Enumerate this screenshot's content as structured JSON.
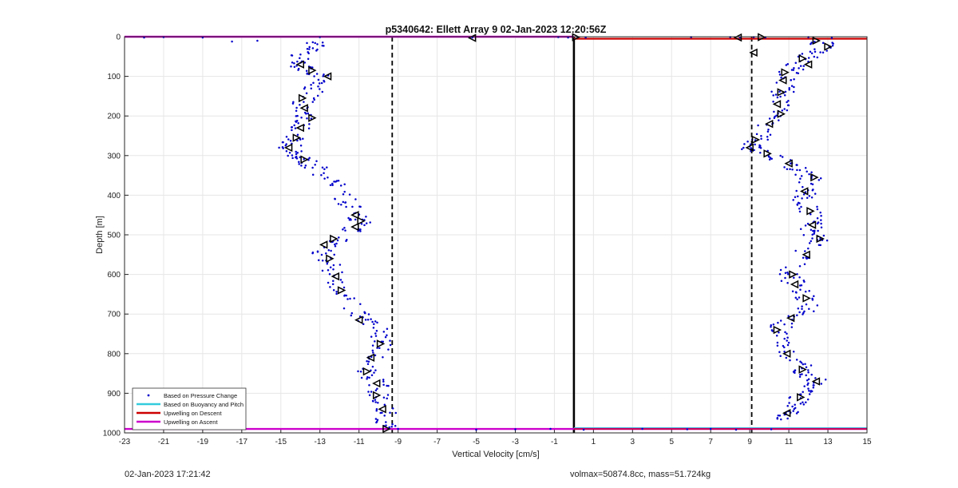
{
  "chart_data": {
    "type": "scatter",
    "title": "p5340642: Ellett Array 9 02-Jan-2023 12:20:56Z",
    "xlabel": "Vertical Velocity [cm/s]",
    "ylabel": "Depth [m]",
    "xlim": [
      -23,
      15
    ],
    "ylim": [
      0,
      1000
    ],
    "y_reversed": true,
    "grid": true,
    "xticks": [
      -23,
      -21,
      -19,
      -17,
      -15,
      -13,
      -11,
      -9,
      -7,
      -5,
      -3,
      -1,
      1,
      3,
      5,
      7,
      9,
      11,
      13,
      15
    ],
    "xtick_labels": [
      "-23",
      "-21",
      "-19",
      "-17",
      "-15",
      "-13",
      "-11",
      "-9",
      "-7",
      "-5",
      "-3",
      "-1",
      "1",
      "3",
      "5",
      "7",
      "9",
      "11",
      "13",
      "15"
    ],
    "yticks": [
      0,
      100,
      200,
      300,
      400,
      500,
      600,
      700,
      800,
      900,
      1000
    ],
    "ytick_labels": [
      "0",
      "100",
      "200",
      "300",
      "400",
      "500",
      "600",
      "700",
      "800",
      "900",
      "1000"
    ],
    "legend_position": "bottom-left",
    "legend": [
      {
        "label": "Based on Pressure Change",
        "color": "#0000cc",
        "style": "dot"
      },
      {
        "label": "Based on Buoyancy and Pitch",
        "color": "#33ccdd",
        "style": "line"
      },
      {
        "label": "Upwelling on Descent",
        "color": "#cc0000",
        "style": "line"
      },
      {
        "label": "Upwelling on Ascent",
        "color": "#cc00cc",
        "style": "line"
      }
    ],
    "ascent_profile": [
      {
        "depth": 10,
        "v": -13.1
      },
      {
        "depth": 30,
        "v": -13.4
      },
      {
        "depth": 50,
        "v": -14.0
      },
      {
        "depth": 70,
        "v": -14.2
      },
      {
        "depth": 85,
        "v": -13.5
      },
      {
        "depth": 100,
        "v": -12.8
      },
      {
        "depth": 130,
        "v": -13.3
      },
      {
        "depth": 160,
        "v": -13.8
      },
      {
        "depth": 190,
        "v": -14.1
      },
      {
        "depth": 210,
        "v": -13.6
      },
      {
        "depth": 230,
        "v": -14.1
      },
      {
        "depth": 260,
        "v": -14.3
      },
      {
        "depth": 280,
        "v": -14.6
      },
      {
        "depth": 300,
        "v": -14.3
      },
      {
        "depth": 310,
        "v": -13.9
      },
      {
        "depth": 330,
        "v": -13.2
      },
      {
        "depth": 360,
        "v": -12.5
      },
      {
        "depth": 390,
        "v": -11.9
      },
      {
        "depth": 420,
        "v": -11.5
      },
      {
        "depth": 450,
        "v": -11.1
      },
      {
        "depth": 470,
        "v": -10.9
      },
      {
        "depth": 490,
        "v": -11.4
      },
      {
        "depth": 520,
        "v": -12.4
      },
      {
        "depth": 545,
        "v": -12.8
      },
      {
        "depth": 570,
        "v": -12.6
      },
      {
        "depth": 600,
        "v": -12.3
      },
      {
        "depth": 640,
        "v": -11.8
      },
      {
        "depth": 680,
        "v": -11.4
      },
      {
        "depth": 710,
        "v": -10.9
      },
      {
        "depth": 730,
        "v": -10.1
      },
      {
        "depth": 760,
        "v": -9.8
      },
      {
        "depth": 790,
        "v": -9.9
      },
      {
        "depth": 820,
        "v": -10.4
      },
      {
        "depth": 850,
        "v": -10.6
      },
      {
        "depth": 880,
        "v": -10.0
      },
      {
        "depth": 910,
        "v": -9.9
      },
      {
        "depth": 940,
        "v": -9.6
      },
      {
        "depth": 970,
        "v": -9.8
      },
      {
        "depth": 990,
        "v": -9.7
      }
    ],
    "descent_profile": [
      {
        "depth": 10,
        "v": 12.8
      },
      {
        "depth": 30,
        "v": 12.6
      },
      {
        "depth": 50,
        "v": 12.0
      },
      {
        "depth": 70,
        "v": 11.5
      },
      {
        "depth": 90,
        "v": 11.0
      },
      {
        "depth": 110,
        "v": 10.8
      },
      {
        "depth": 140,
        "v": 10.7
      },
      {
        "depth": 170,
        "v": 10.4
      },
      {
        "depth": 200,
        "v": 10.5
      },
      {
        "depth": 230,
        "v": 9.9
      },
      {
        "depth": 260,
        "v": 9.4
      },
      {
        "depth": 280,
        "v": 9.0
      },
      {
        "depth": 300,
        "v": 10.0
      },
      {
        "depth": 320,
        "v": 11.1
      },
      {
        "depth": 340,
        "v": 11.6
      },
      {
        "depth": 360,
        "v": 12.2
      },
      {
        "depth": 390,
        "v": 11.9
      },
      {
        "depth": 410,
        "v": 11.7
      },
      {
        "depth": 440,
        "v": 12.1
      },
      {
        "depth": 470,
        "v": 12.4
      },
      {
        "depth": 490,
        "v": 12.1
      },
      {
        "depth": 510,
        "v": 12.6
      },
      {
        "depth": 540,
        "v": 11.9
      },
      {
        "depth": 570,
        "v": 11.3
      },
      {
        "depth": 600,
        "v": 11.1
      },
      {
        "depth": 630,
        "v": 11.3
      },
      {
        "depth": 660,
        "v": 11.9
      },
      {
        "depth": 690,
        "v": 11.9
      },
      {
        "depth": 710,
        "v": 11.1
      },
      {
        "depth": 740,
        "v": 10.4
      },
      {
        "depth": 770,
        "v": 10.6
      },
      {
        "depth": 800,
        "v": 10.9
      },
      {
        "depth": 830,
        "v": 11.6
      },
      {
        "depth": 850,
        "v": 11.9
      },
      {
        "depth": 870,
        "v": 12.4
      },
      {
        "depth": 890,
        "v": 12.1
      },
      {
        "depth": 910,
        "v": 11.6
      },
      {
        "depth": 930,
        "v": 11.4
      },
      {
        "depth": 950,
        "v": 10.9
      },
      {
        "depth": 970,
        "v": 10.6
      }
    ],
    "surface_points": [
      {
        "depth": 2,
        "v": -22.0
      },
      {
        "depth": 1,
        "v": -21.0
      },
      {
        "depth": 2,
        "v": -19.0
      },
      {
        "depth": 12,
        "v": -17.5
      },
      {
        "depth": 10,
        "v": -16.2
      },
      {
        "depth": 1,
        "v": -13.0
      },
      {
        "depth": 2,
        "v": -5.2
      },
      {
        "depth": 1,
        "v": -0.8
      },
      {
        "depth": 2,
        "v": -0.3
      },
      {
        "depth": 1,
        "v": 0.2
      },
      {
        "depth": 2,
        "v": 0.6
      },
      {
        "depth": 1,
        "v": 6.0
      },
      {
        "depth": 1,
        "v": 8.0
      },
      {
        "depth": 2,
        "v": 8.5
      },
      {
        "depth": 1,
        "v": 9.2
      },
      {
        "depth": 2,
        "v": 9.8
      },
      {
        "depth": 1,
        "v": 12.0
      },
      {
        "depth": 3,
        "v": 13.2
      }
    ],
    "bottom_points": [
      {
        "depth": 990,
        "v": -9.0
      },
      {
        "depth": 992,
        "v": -5.0
      },
      {
        "depth": 991,
        "v": -3.0
      },
      {
        "depth": 990,
        "v": -1.2
      },
      {
        "depth": 992,
        "v": 0.5
      },
      {
        "depth": 990,
        "v": 3.5
      },
      {
        "depth": 991,
        "v": 5.8
      },
      {
        "depth": 990,
        "v": 7.0
      },
      {
        "depth": 992,
        "v": 8.3
      },
      {
        "depth": 991,
        "v": 10.1
      }
    ],
    "triangle_markers": [
      {
        "depth": 70,
        "v": -14.0,
        "dir": "left"
      },
      {
        "depth": 85,
        "v": -13.4,
        "dir": "right"
      },
      {
        "depth": 100,
        "v": -12.6,
        "dir": "left"
      },
      {
        "depth": 155,
        "v": -13.9,
        "dir": "right"
      },
      {
        "depth": 180,
        "v": -13.8,
        "dir": "left"
      },
      {
        "depth": 205,
        "v": -13.4,
        "dir": "right"
      },
      {
        "depth": 230,
        "v": -14.0,
        "dir": "left"
      },
      {
        "depth": 255,
        "v": -14.2,
        "dir": "right"
      },
      {
        "depth": 280,
        "v": -14.6,
        "dir": "left"
      },
      {
        "depth": 310,
        "v": -13.8,
        "dir": "right"
      },
      {
        "depth": 450,
        "v": -11.2,
        "dir": "left"
      },
      {
        "depth": 465,
        "v": -10.9,
        "dir": "right"
      },
      {
        "depth": 480,
        "v": -11.2,
        "dir": "left"
      },
      {
        "depth": 510,
        "v": -12.3,
        "dir": "right"
      },
      {
        "depth": 525,
        "v": -12.8,
        "dir": "left"
      },
      {
        "depth": 560,
        "v": -12.5,
        "dir": "right"
      },
      {
        "depth": 605,
        "v": -12.2,
        "dir": "left"
      },
      {
        "depth": 640,
        "v": -11.9,
        "dir": "right"
      },
      {
        "depth": 715,
        "v": -11.0,
        "dir": "left"
      },
      {
        "depth": 775,
        "v": -9.9,
        "dir": "right"
      },
      {
        "depth": 810,
        "v": -10.4,
        "dir": "left"
      },
      {
        "depth": 845,
        "v": -10.6,
        "dir": "right"
      },
      {
        "depth": 875,
        "v": -10.1,
        "dir": "left"
      },
      {
        "depth": 905,
        "v": -10.1,
        "dir": "right"
      },
      {
        "depth": 940,
        "v": -9.8,
        "dir": "left"
      },
      {
        "depth": 990,
        "v": -9.6,
        "dir": "right"
      },
      {
        "depth": 3,
        "v": -5.2,
        "dir": "left"
      },
      {
        "depth": 1,
        "v": 0.1,
        "dir": "right"
      },
      {
        "depth": 2,
        "v": 8.4,
        "dir": "left"
      },
      {
        "depth": 1,
        "v": 9.6,
        "dir": "right"
      },
      {
        "depth": 10,
        "v": 12.4,
        "dir": "right"
      },
      {
        "depth": 25,
        "v": 13.0,
        "dir": "right"
      },
      {
        "depth": 40,
        "v": 9.2,
        "dir": "left"
      },
      {
        "depth": 55,
        "v": 11.7,
        "dir": "right"
      },
      {
        "depth": 70,
        "v": 12.0,
        "dir": "left"
      },
      {
        "depth": 90,
        "v": 10.8,
        "dir": "right"
      },
      {
        "depth": 110,
        "v": 10.7,
        "dir": "left"
      },
      {
        "depth": 140,
        "v": 10.6,
        "dir": "right"
      },
      {
        "depth": 170,
        "v": 10.4,
        "dir": "left"
      },
      {
        "depth": 195,
        "v": 10.6,
        "dir": "right"
      },
      {
        "depth": 220,
        "v": 10.0,
        "dir": "left"
      },
      {
        "depth": 260,
        "v": 9.3,
        "dir": "right"
      },
      {
        "depth": 280,
        "v": 9.0,
        "dir": "left"
      },
      {
        "depth": 295,
        "v": 9.9,
        "dir": "right"
      },
      {
        "depth": 320,
        "v": 11.0,
        "dir": "left"
      },
      {
        "depth": 355,
        "v": 12.3,
        "dir": "right"
      },
      {
        "depth": 390,
        "v": 11.8,
        "dir": "left"
      },
      {
        "depth": 440,
        "v": 12.1,
        "dir": "right"
      },
      {
        "depth": 475,
        "v": 12.2,
        "dir": "left"
      },
      {
        "depth": 510,
        "v": 12.6,
        "dir": "right"
      },
      {
        "depth": 550,
        "v": 11.9,
        "dir": "left"
      },
      {
        "depth": 600,
        "v": 11.2,
        "dir": "right"
      },
      {
        "depth": 625,
        "v": 11.3,
        "dir": "left"
      },
      {
        "depth": 660,
        "v": 11.9,
        "dir": "right"
      },
      {
        "depth": 710,
        "v": 11.1,
        "dir": "left"
      },
      {
        "depth": 740,
        "v": 10.4,
        "dir": "right"
      },
      {
        "depth": 800,
        "v": 10.9,
        "dir": "left"
      },
      {
        "depth": 840,
        "v": 11.7,
        "dir": "right"
      },
      {
        "depth": 870,
        "v": 12.4,
        "dir": "left"
      },
      {
        "depth": 910,
        "v": 11.6,
        "dir": "right"
      },
      {
        "depth": 950,
        "v": 10.9,
        "dir": "left"
      }
    ],
    "reference_lines": [
      {
        "kind": "dashed",
        "v": -9.3
      },
      {
        "kind": "dashed",
        "v": 9.1
      },
      {
        "kind": "solid",
        "v": 0
      }
    ],
    "upwelling_on_descent": {
      "depth": 5,
      "v_from": 0,
      "v_to": 15
    },
    "upwelling_on_ascent": [
      {
        "depth": 0,
        "v_from": -23,
        "v_to": 0
      },
      {
        "depth": 990,
        "v_from": -23,
        "v_to": 15
      }
    ],
    "buoyancy_pitch_line": {
      "depth": 988,
      "v_from": 0,
      "v_to": 15
    }
  },
  "footer": {
    "timestamp": "02-Jan-2023 17:21:42",
    "info": "volmax=50874.8cc, mass=51.724kg"
  }
}
